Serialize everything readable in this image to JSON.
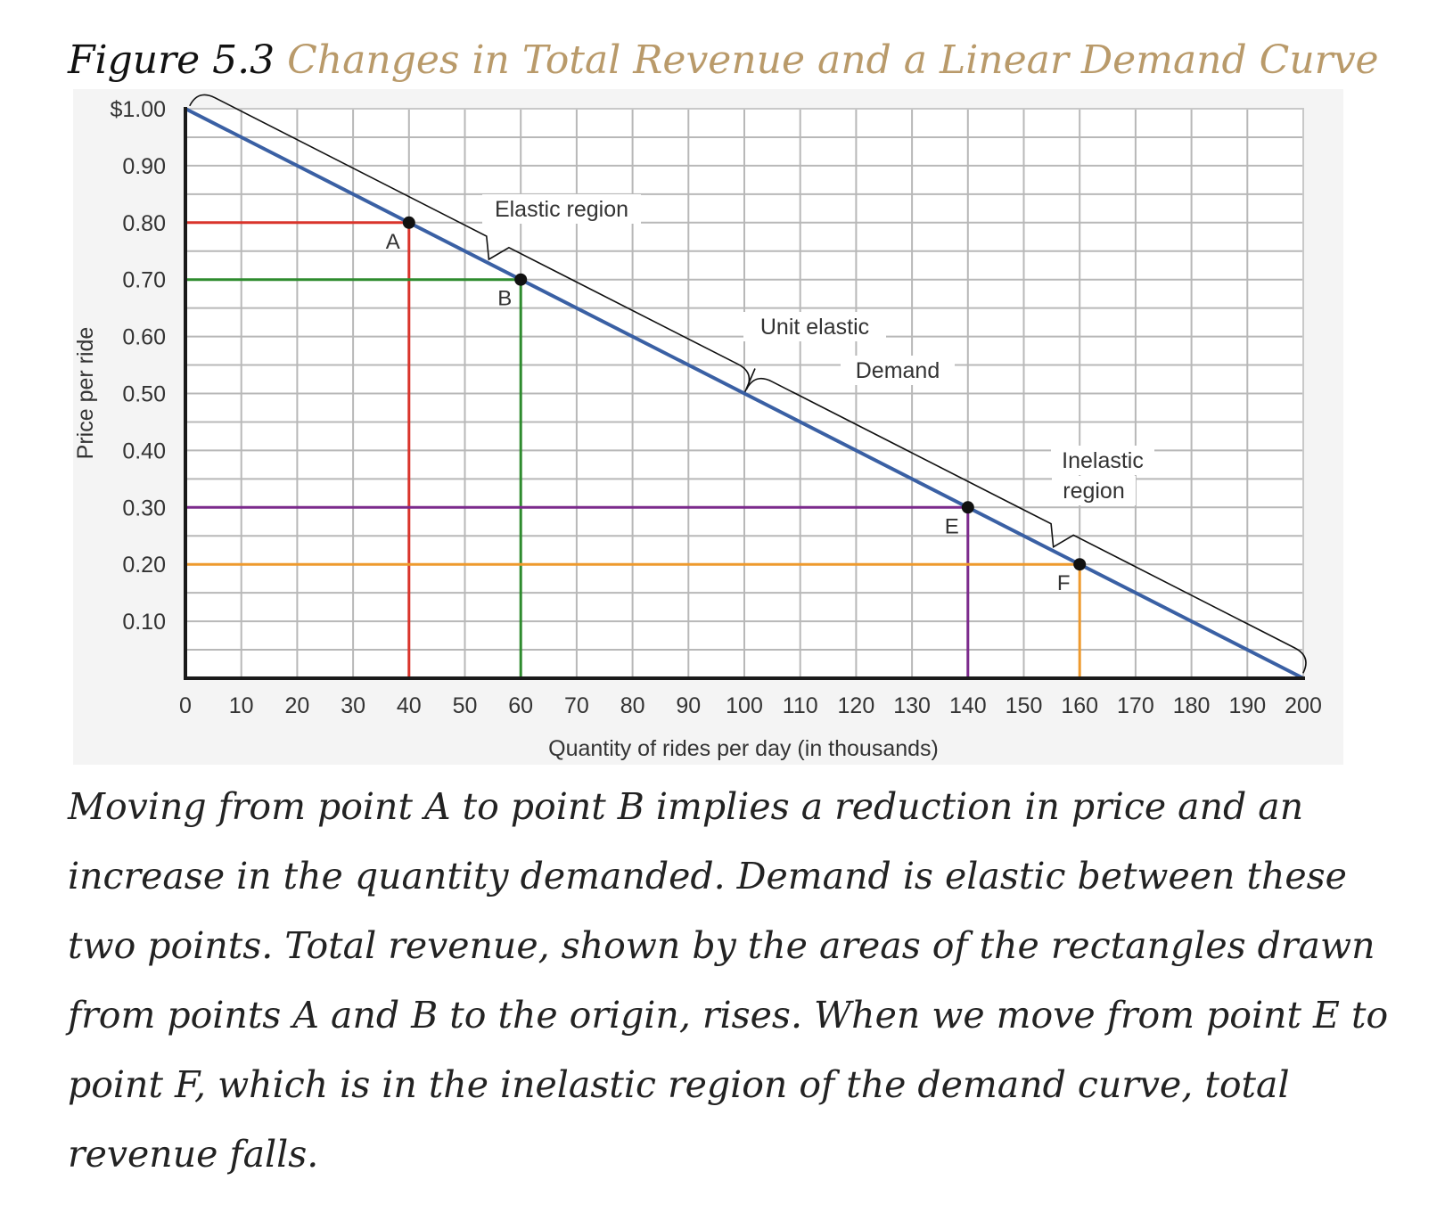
{
  "figure": {
    "label": "Figure 5.3",
    "title": "Changes in Total Revenue and a Linear Demand Curve"
  },
  "caption": "Moving from point A to point B implies a reduction in price and an increase in the quantity demanded. Demand is elastic between these two points. Total revenue, shown by the areas of the rectangles drawn from points A and B to the origin, rises. When we move from point E to point F, which is in the inelastic region of the demand curve, total revenue falls.",
  "colors": {
    "demand": "#3a60a4",
    "A": "#d9342b",
    "B": "#2e8b2e",
    "E": "#7b2a8c",
    "F": "#ee9a2e",
    "caption_title": "#b99a6a"
  },
  "chart_data": {
    "type": "line",
    "xlabel": "Quantity of rides per day (in thousands)",
    "ylabel": "Price per ride",
    "xlim": [
      0,
      200
    ],
    "ylim": [
      0,
      1.0
    ],
    "x_ticks": [
      0,
      10,
      20,
      30,
      40,
      50,
      60,
      70,
      80,
      90,
      100,
      110,
      120,
      130,
      140,
      150,
      160,
      170,
      180,
      190,
      200
    ],
    "x_tick_labels": [
      "0",
      "10",
      "20",
      "30",
      "40",
      "50",
      "60",
      "70",
      "80",
      "90",
      "100",
      "110",
      "120",
      "130",
      "140",
      "150",
      "160",
      "170",
      "180",
      "190",
      "200"
    ],
    "y_ticks": [
      0.1,
      0.2,
      0.3,
      0.4,
      0.5,
      0.6,
      0.7,
      0.8,
      0.9,
      1.0
    ],
    "y_tick_labels": [
      "0.10",
      "0.20",
      "0.30",
      "0.40",
      "0.50",
      "0.60",
      "0.70",
      "0.80",
      "0.90",
      "$1.00"
    ],
    "grid": true,
    "series": [
      {
        "name": "Demand",
        "x": [
          0,
          200
        ],
        "y": [
          1.0,
          0.0
        ]
      }
    ],
    "points": [
      {
        "label": "A",
        "x": 40,
        "y": 0.8,
        "color": "#d9342b"
      },
      {
        "label": "B",
        "x": 60,
        "y": 0.7,
        "color": "#2e8b2e"
      },
      {
        "label": "E",
        "x": 140,
        "y": 0.3,
        "color": "#7b2a8c"
      },
      {
        "label": "F",
        "x": 160,
        "y": 0.2,
        "color": "#ee9a2e"
      }
    ],
    "annotations": [
      {
        "text": "Elastic region"
      },
      {
        "text": "Unit elastic"
      },
      {
        "text": "Demand"
      },
      {
        "text": "Inelastic"
      },
      {
        "text": "region"
      }
    ]
  }
}
